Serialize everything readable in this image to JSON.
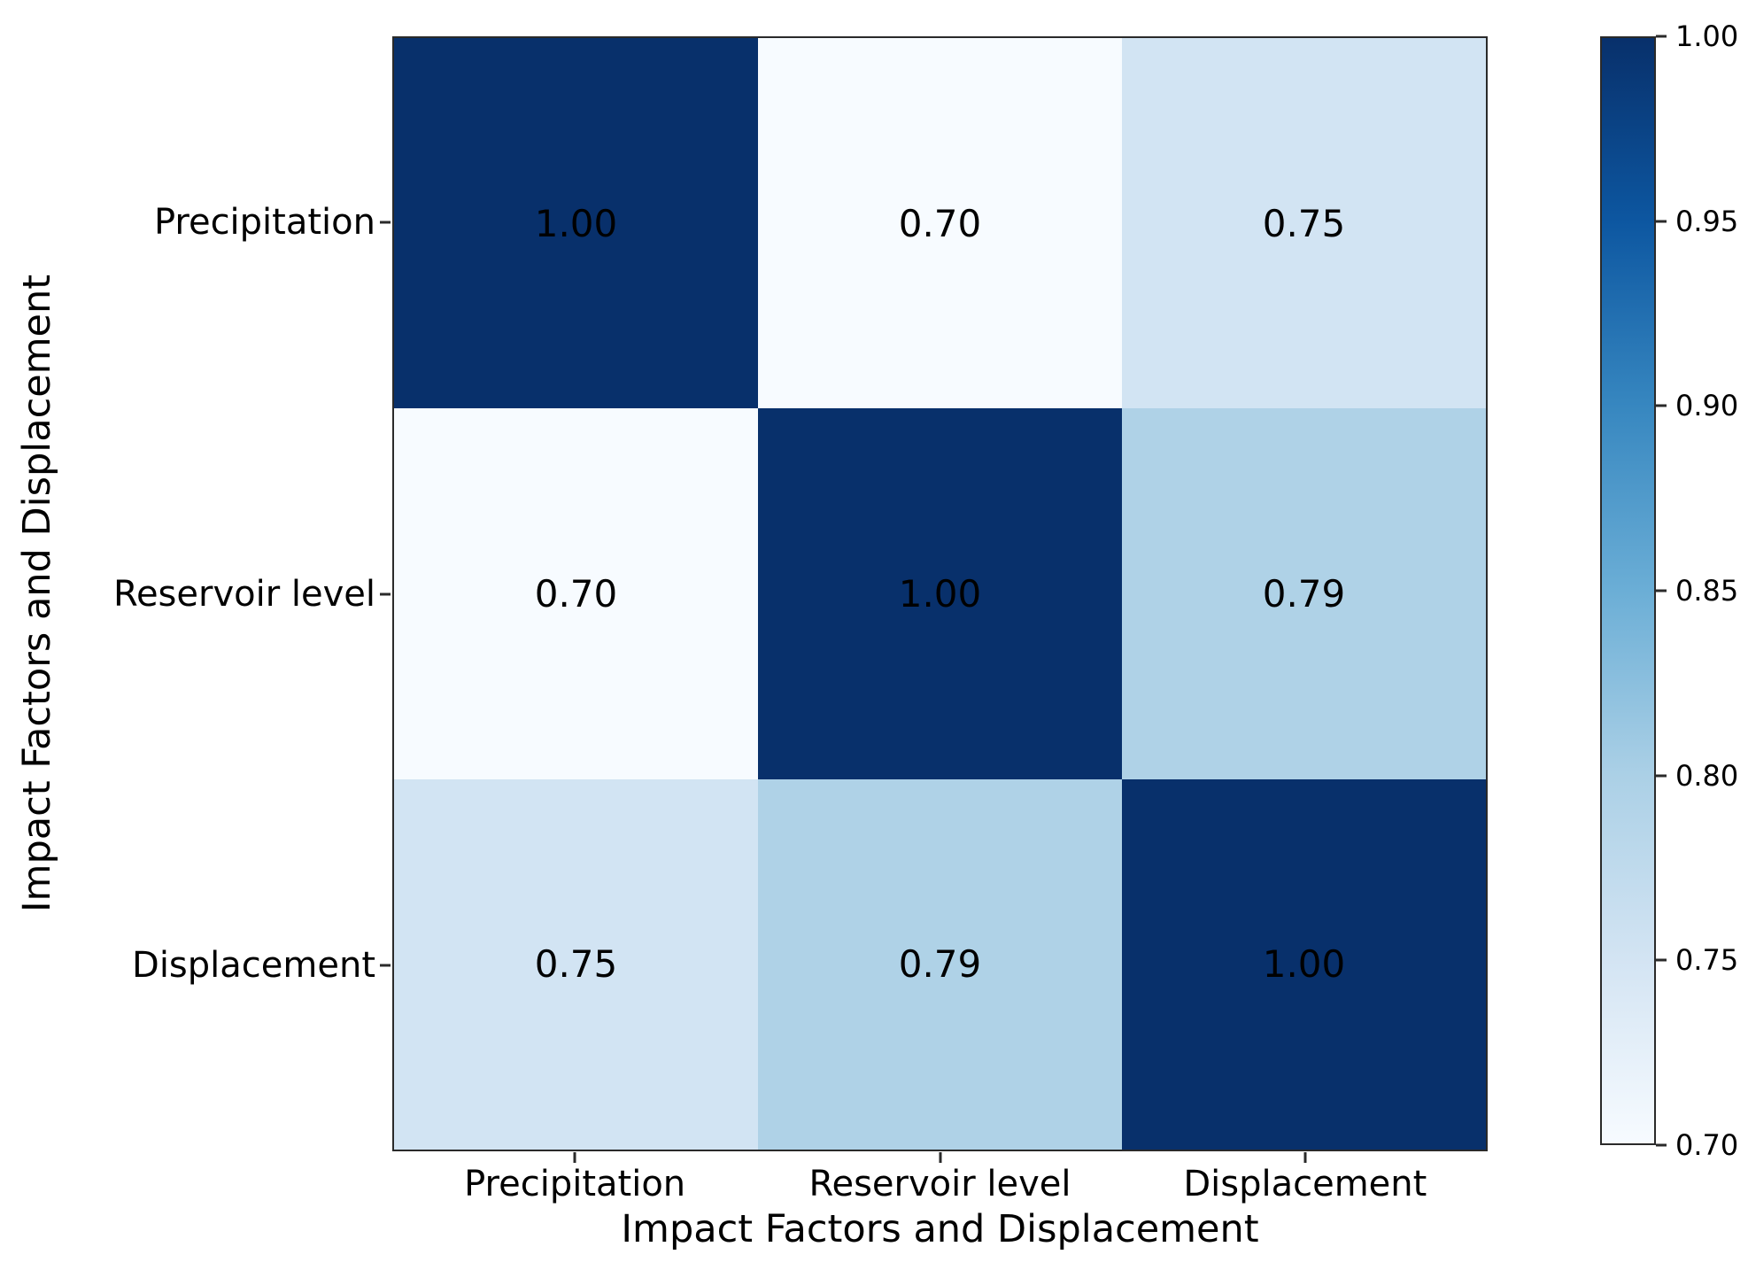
{
  "figure": {
    "background_color": "#ffffff",
    "spine_color": "#2a2a2a",
    "text_color": "#000000"
  },
  "chart_data": {
    "type": "heatmap",
    "title": "",
    "xlabel": "Impact Factors and Displacement",
    "ylabel": "Impact Factors and Displacement",
    "x_categories": [
      "Precipitation",
      "Reservoir level",
      "Displacement"
    ],
    "y_categories": [
      "Precipitation",
      "Reservoir level",
      "Displacement"
    ],
    "matrix": [
      [
        1.0,
        0.7,
        0.75
      ],
      [
        0.7,
        1.0,
        0.79
      ],
      [
        0.75,
        0.79,
        1.0
      ]
    ],
    "cell_labels": [
      [
        "1.00",
        "0.70",
        "0.75"
      ],
      [
        "0.70",
        "1.00",
        "0.79"
      ],
      [
        "0.75",
        "0.79",
        "1.00"
      ]
    ],
    "cell_colors": [
      [
        "#08306b",
        "#f7fbff",
        "#d2e4f3"
      ],
      [
        "#f7fbff",
        "#08306b",
        "#afd2e7"
      ],
      [
        "#d2e4f3",
        "#afd2e7",
        "#08306b"
      ]
    ],
    "annotation_color": "#000000",
    "colormap": "Blues",
    "grid": false,
    "legend": false,
    "colorbar": {
      "min": 0.7,
      "max": 1.0,
      "tick_labels": [
        "1.00",
        "0.95",
        "0.90",
        "0.85",
        "0.80",
        "0.75",
        "0.70"
      ],
      "gradient_stops_top_to_bottom": [
        "#08306b",
        "#0d57a1",
        "#3787c0",
        "#6baed6",
        "#abd0e6",
        "#d3e4f3",
        "#f7fbff"
      ]
    }
  }
}
